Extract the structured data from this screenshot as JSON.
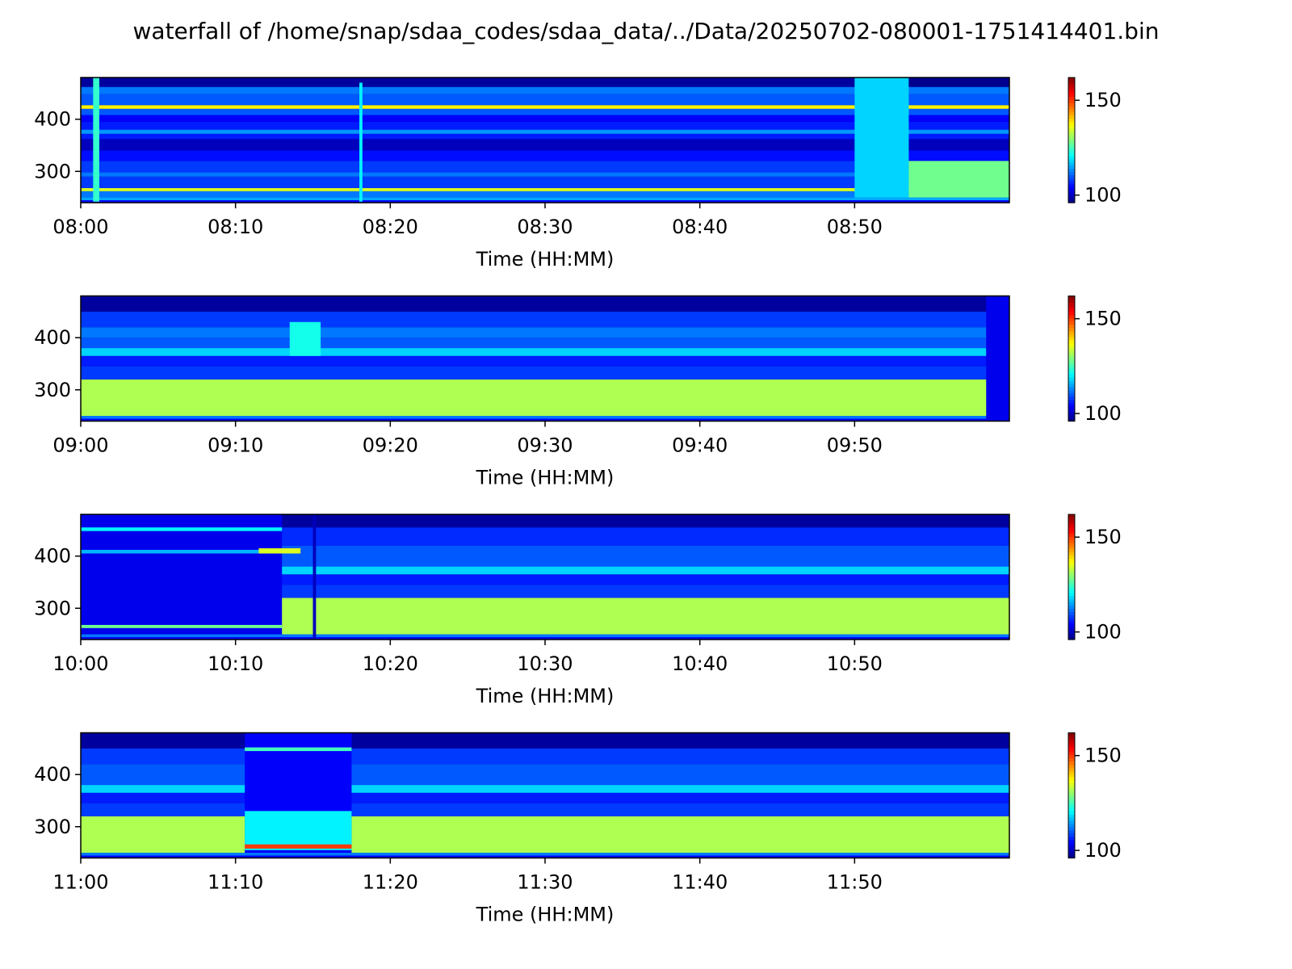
{
  "figure": {
    "title": "waterfall of /home/snap/sdaa_codes/sdaa_data/../Data/20250702-080001-1751414401.bin"
  },
  "chart_data": [
    {
      "type": "heatmap",
      "xlabel": "Time (HH:MM)",
      "ylabel": "",
      "x_ticks": [
        "08:00",
        "08:10",
        "08:20",
        "08:30",
        "08:40",
        "08:50"
      ],
      "x_range_minutes": [
        0,
        60
      ],
      "y_ticks": [
        300,
        400
      ],
      "ylim": [
        240,
        480
      ],
      "colormap": "jet",
      "color_range": [
        96,
        162
      ],
      "colorbar_ticks": [
        100,
        150
      ],
      "bands": [
        {
          "y": [
            242,
            250
          ],
          "value": 115
        },
        {
          "y": [
            250,
            262
          ],
          "value": 112
        },
        {
          "y": [
            262,
            268
          ],
          "value": 135
        },
        {
          "y": [
            268,
            290
          ],
          "value": 108
        },
        {
          "y": [
            290,
            298
          ],
          "value": 112
        },
        {
          "y": [
            298,
            320
          ],
          "value": 108
        },
        {
          "y": [
            320,
            340
          ],
          "value": 105
        },
        {
          "y": [
            340,
            362
          ],
          "value": 100
        },
        {
          "y": [
            362,
            372
          ],
          "value": 106
        },
        {
          "y": [
            372,
            380
          ],
          "value": 114
        },
        {
          "y": [
            380,
            395
          ],
          "value": 106
        },
        {
          "y": [
            395,
            408
          ],
          "value": 104
        },
        {
          "y": [
            408,
            420
          ],
          "value": 110
        },
        {
          "y": [
            420,
            427
          ],
          "value": 138
        },
        {
          "y": [
            427,
            448
          ],
          "value": 110
        },
        {
          "y": [
            448,
            462
          ],
          "value": 112
        },
        {
          "y": [
            462,
            480
          ],
          "value": 98
        }
      ],
      "events": [
        {
          "t": [
            0.8,
            1.2
          ],
          "y": [
            242,
            480
          ],
          "value": 124
        },
        {
          "t": [
            18.0,
            18.2
          ],
          "y": [
            242,
            470
          ],
          "value": 120
        },
        {
          "t": [
            50.0,
            53.5
          ],
          "y": [
            250,
            480
          ],
          "value": 118
        },
        {
          "t": [
            53.5,
            60.0
          ],
          "y": [
            462,
            480
          ],
          "value": 97
        },
        {
          "t": [
            53.5,
            60.0
          ],
          "y": [
            250,
            320
          ],
          "value": 128
        }
      ]
    },
    {
      "type": "heatmap",
      "xlabel": "Time (HH:MM)",
      "ylabel": "",
      "x_ticks": [
        "09:00",
        "09:10",
        "09:20",
        "09:30",
        "09:40",
        "09:50"
      ],
      "x_range_minutes": [
        0,
        60
      ],
      "y_ticks": [
        300,
        400
      ],
      "ylim": [
        240,
        480
      ],
      "colormap": "jet",
      "color_range": [
        96,
        162
      ],
      "colorbar_ticks": [
        100,
        150
      ],
      "bands": [
        {
          "y": [
            242,
            250
          ],
          "value": 112
        },
        {
          "y": [
            250,
            320
          ],
          "value": 132
        },
        {
          "y": [
            320,
            345
          ],
          "value": 108
        },
        {
          "y": [
            345,
            365
          ],
          "value": 106
        },
        {
          "y": [
            365,
            380
          ],
          "value": 118
        },
        {
          "y": [
            380,
            400
          ],
          "value": 110
        },
        {
          "y": [
            400,
            420
          ],
          "value": 112
        },
        {
          "y": [
            420,
            450
          ],
          "value": 108
        },
        {
          "y": [
            450,
            480
          ],
          "value": 98
        }
      ],
      "events": [
        {
          "t": [
            13.5,
            15.5
          ],
          "y": [
            365,
            430
          ],
          "value": 122
        },
        {
          "t": [
            58.5,
            60.0
          ],
          "y": [
            242,
            480
          ],
          "value": 103
        }
      ]
    },
    {
      "type": "heatmap",
      "xlabel": "Time (HH:MM)",
      "ylabel": "",
      "x_ticks": [
        "10:00",
        "10:10",
        "10:20",
        "10:30",
        "10:40",
        "10:50"
      ],
      "x_range_minutes": [
        0,
        60
      ],
      "y_ticks": [
        300,
        400
      ],
      "ylim": [
        240,
        480
      ],
      "colormap": "jet",
      "color_range": [
        96,
        162
      ],
      "colorbar_ticks": [
        100,
        150
      ],
      "bands": [
        {
          "y": [
            242,
            250
          ],
          "value": 112
        },
        {
          "y": [
            250,
            320
          ],
          "value": 132
        },
        {
          "y": [
            320,
            345
          ],
          "value": 108
        },
        {
          "y": [
            345,
            365
          ],
          "value": 106
        },
        {
          "y": [
            365,
            380
          ],
          "value": 118
        },
        {
          "y": [
            380,
            420
          ],
          "value": 110
        },
        {
          "y": [
            420,
            455
          ],
          "value": 107
        },
        {
          "y": [
            455,
            480
          ],
          "value": 98
        }
      ],
      "events": [
        {
          "t": [
            0.0,
            13.0
          ],
          "y": [
            250,
            480
          ],
          "value": 103
        },
        {
          "t": [
            0.0,
            13.0
          ],
          "y": [
            448,
            455
          ],
          "value": 120
        },
        {
          "t": [
            0.0,
            13.0
          ],
          "y": [
            405,
            412
          ],
          "value": 116
        },
        {
          "t": [
            0.0,
            13.0
          ],
          "y": [
            262,
            268
          ],
          "value": 128
        },
        {
          "t": [
            11.5,
            14.2
          ],
          "y": [
            405,
            415
          ],
          "value": 135
        },
        {
          "t": [
            15.0,
            15.2
          ],
          "y": [
            242,
            480
          ],
          "value": 100
        }
      ]
    },
    {
      "type": "heatmap",
      "xlabel": "Time (HH:MM)",
      "ylabel": "",
      "x_ticks": [
        "11:00",
        "11:10",
        "11:20",
        "11:30",
        "11:40",
        "11:50"
      ],
      "x_range_minutes": [
        0,
        60
      ],
      "y_ticks": [
        300,
        400
      ],
      "ylim": [
        240,
        480
      ],
      "colormap": "jet",
      "color_range": [
        96,
        162
      ],
      "colorbar_ticks": [
        100,
        150
      ],
      "bands": [
        {
          "y": [
            242,
            250
          ],
          "value": 112
        },
        {
          "y": [
            250,
            320
          ],
          "value": 132
        },
        {
          "y": [
            320,
            345
          ],
          "value": 108
        },
        {
          "y": [
            345,
            365
          ],
          "value": 106
        },
        {
          "y": [
            365,
            380
          ],
          "value": 118
        },
        {
          "y": [
            380,
            420
          ],
          "value": 110
        },
        {
          "y": [
            420,
            450
          ],
          "value": 108
        },
        {
          "y": [
            450,
            480
          ],
          "value": 98
        }
      ],
      "events": [
        {
          "t": [
            10.6,
            17.5
          ],
          "y": [
            250,
            480
          ],
          "value": 104
        },
        {
          "t": [
            10.6,
            17.5
          ],
          "y": [
            255,
            330
          ],
          "value": 120
        },
        {
          "t": [
            10.6,
            17.5
          ],
          "y": [
            258,
            266
          ],
          "value": 150
        },
        {
          "t": [
            10.6,
            17.5
          ],
          "y": [
            445,
            452
          ],
          "value": 125
        }
      ]
    }
  ]
}
